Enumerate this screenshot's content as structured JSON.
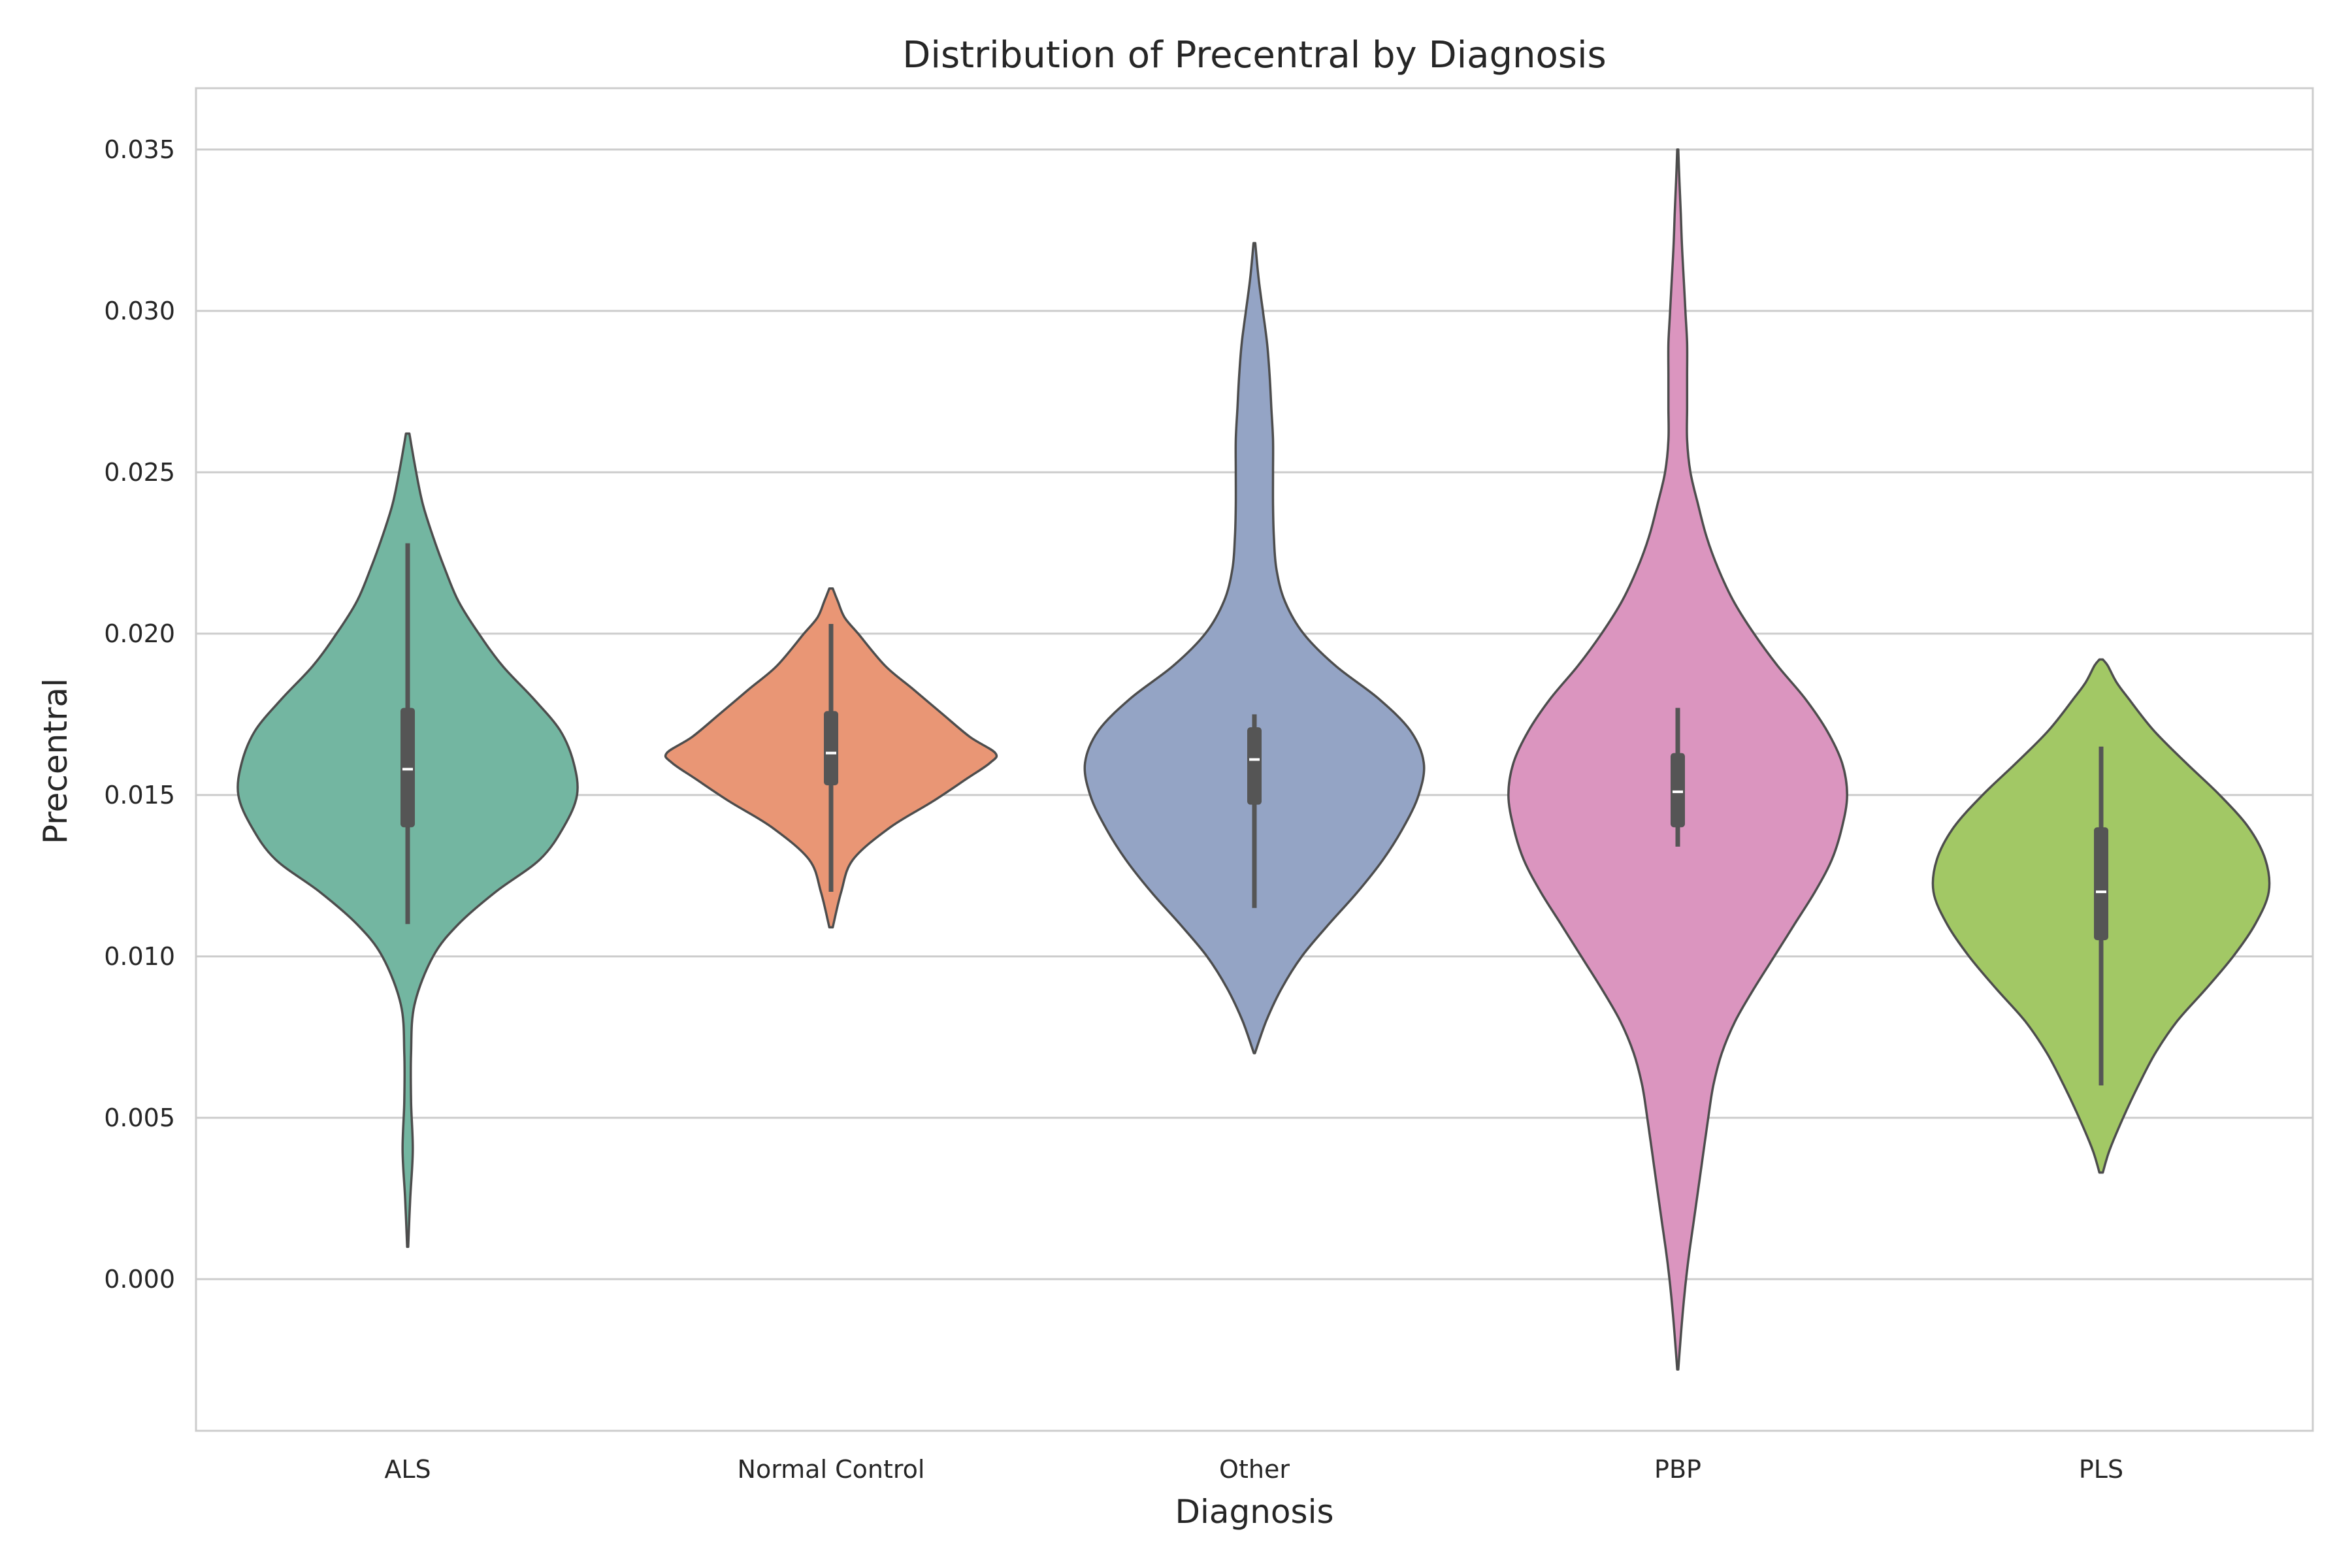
{
  "chart_data": {
    "type": "violin",
    "title": "Distribution of Precentral by Diagnosis",
    "xlabel": "Diagnosis",
    "ylabel": "Precentral",
    "ylim": [
      -0.0047,
      0.0369
    ],
    "yticks": [
      "0.000",
      "0.005",
      "0.010",
      "0.015",
      "0.020",
      "0.025",
      "0.030",
      "0.035"
    ],
    "grid": "horizontal",
    "categories": [
      "ALS",
      "Normal Control",
      "Other",
      "PBP",
      "PLS"
    ],
    "series": [
      {
        "category": "ALS",
        "color": "#73b6a1",
        "range": [
          0.001,
          0.0262
        ],
        "median": 0.0158,
        "q1": 0.014,
        "q3": 0.0177,
        "whisker_low": 0.011,
        "whisker_high": 0.0228,
        "density": [
          [
            0.001,
            0.003
          ],
          [
            0.0025,
            0.015
          ],
          [
            0.004,
            0.03
          ],
          [
            0.0055,
            0.02
          ],
          [
            0.007,
            0.02
          ],
          [
            0.0085,
            0.04
          ],
          [
            0.01,
            0.15
          ],
          [
            0.011,
            0.3
          ],
          [
            0.012,
            0.52
          ],
          [
            0.013,
            0.78
          ],
          [
            0.014,
            0.92
          ],
          [
            0.015,
            1.0
          ],
          [
            0.016,
            0.98
          ],
          [
            0.017,
            0.9
          ],
          [
            0.018,
            0.74
          ],
          [
            0.019,
            0.56
          ],
          [
            0.02,
            0.42
          ],
          [
            0.021,
            0.3
          ],
          [
            0.022,
            0.22
          ],
          [
            0.023,
            0.15
          ],
          [
            0.024,
            0.09
          ],
          [
            0.025,
            0.05
          ],
          [
            0.0262,
            0.01
          ]
        ]
      },
      {
        "category": "Normal Control",
        "color": "#e99675",
        "range": [
          0.0109,
          0.0214
        ],
        "median": 0.0163,
        "q1": 0.0153,
        "q3": 0.0176,
        "whisker_low": 0.012,
        "whisker_high": 0.0203,
        "density": [
          [
            0.0109,
            0.01
          ],
          [
            0.012,
            0.06
          ],
          [
            0.013,
            0.13
          ],
          [
            0.014,
            0.35
          ],
          [
            0.0148,
            0.6
          ],
          [
            0.0155,
            0.8
          ],
          [
            0.016,
            0.94
          ],
          [
            0.0163,
            0.97
          ],
          [
            0.0168,
            0.82
          ],
          [
            0.0175,
            0.66
          ],
          [
            0.0183,
            0.48
          ],
          [
            0.019,
            0.32
          ],
          [
            0.02,
            0.16
          ],
          [
            0.0205,
            0.08
          ],
          [
            0.021,
            0.04
          ],
          [
            0.0214,
            0.01
          ]
        ]
      },
      {
        "category": "Other",
        "color": "#94a4c5",
        "range": [
          0.007,
          0.0321
        ],
        "median": 0.0161,
        "q1": 0.0147,
        "q3": 0.0171,
        "whisker_low": 0.0115,
        "whisker_high": 0.0175,
        "density": [
          [
            0.007,
            0.003
          ],
          [
            0.008,
            0.07
          ],
          [
            0.009,
            0.16
          ],
          [
            0.01,
            0.28
          ],
          [
            0.011,
            0.44
          ],
          [
            0.012,
            0.61
          ],
          [
            0.013,
            0.76
          ],
          [
            0.014,
            0.88
          ],
          [
            0.015,
            0.97
          ],
          [
            0.016,
            1.0
          ],
          [
            0.017,
            0.92
          ],
          [
            0.018,
            0.73
          ],
          [
            0.019,
            0.48
          ],
          [
            0.02,
            0.29
          ],
          [
            0.021,
            0.18
          ],
          [
            0.022,
            0.13
          ],
          [
            0.023,
            0.115
          ],
          [
            0.024,
            0.11
          ],
          [
            0.025,
            0.11
          ],
          [
            0.026,
            0.11
          ],
          [
            0.027,
            0.1
          ],
          [
            0.028,
            0.09
          ],
          [
            0.029,
            0.075
          ],
          [
            0.03,
            0.05
          ],
          [
            0.031,
            0.025
          ],
          [
            0.0321,
            0.005
          ]
        ]
      },
      {
        "category": "PBP",
        "color": "#db95bf",
        "range": [
          -0.0028,
          0.035
        ],
        "median": 0.0151,
        "q1": 0.014,
        "q3": 0.0163,
        "whisker_low": 0.0134,
        "whisker_high": 0.0177,
        "density": [
          [
            -0.0028,
            0.003
          ],
          [
            -0.001,
            0.03
          ],
          [
            0.0005,
            0.06
          ],
          [
            0.002,
            0.1
          ],
          [
            0.0035,
            0.14
          ],
          [
            0.005,
            0.18
          ],
          [
            0.006,
            0.21
          ],
          [
            0.007,
            0.26
          ],
          [
            0.008,
            0.34
          ],
          [
            0.009,
            0.45
          ],
          [
            0.01,
            0.57
          ],
          [
            0.011,
            0.69
          ],
          [
            0.012,
            0.81
          ],
          [
            0.013,
            0.91
          ],
          [
            0.014,
            0.97
          ],
          [
            0.015,
            1.0
          ],
          [
            0.016,
            0.97
          ],
          [
            0.017,
            0.88
          ],
          [
            0.018,
            0.75
          ],
          [
            0.019,
            0.59
          ],
          [
            0.02,
            0.45
          ],
          [
            0.021,
            0.33
          ],
          [
            0.022,
            0.24
          ],
          [
            0.023,
            0.17
          ],
          [
            0.024,
            0.12
          ],
          [
            0.025,
            0.075
          ],
          [
            0.026,
            0.055
          ],
          [
            0.027,
            0.055
          ],
          [
            0.028,
            0.055
          ],
          [
            0.029,
            0.055
          ],
          [
            0.03,
            0.045
          ],
          [
            0.031,
            0.035
          ],
          [
            0.032,
            0.025
          ],
          [
            0.033,
            0.018
          ],
          [
            0.034,
            0.01
          ],
          [
            0.035,
            0.003
          ]
        ]
      },
      {
        "category": "PLS",
        "color": "#a2c865",
        "range": [
          0.0033,
          0.0192
        ],
        "median": 0.012,
        "q1": 0.0105,
        "q3": 0.014,
        "whisker_low": 0.006,
        "whisker_high": 0.0165,
        "density": [
          [
            0.0033,
            0.01
          ],
          [
            0.004,
            0.05
          ],
          [
            0.005,
            0.13
          ],
          [
            0.006,
            0.22
          ],
          [
            0.007,
            0.32
          ],
          [
            0.008,
            0.45
          ],
          [
            0.009,
            0.62
          ],
          [
            0.01,
            0.78
          ],
          [
            0.011,
            0.91
          ],
          [
            0.012,
            0.99
          ],
          [
            0.013,
            0.97
          ],
          [
            0.014,
            0.87
          ],
          [
            0.015,
            0.7
          ],
          [
            0.016,
            0.5
          ],
          [
            0.017,
            0.31
          ],
          [
            0.018,
            0.16
          ],
          [
            0.0185,
            0.09
          ],
          [
            0.019,
            0.04
          ],
          [
            0.0192,
            0.01
          ]
        ]
      }
    ]
  }
}
